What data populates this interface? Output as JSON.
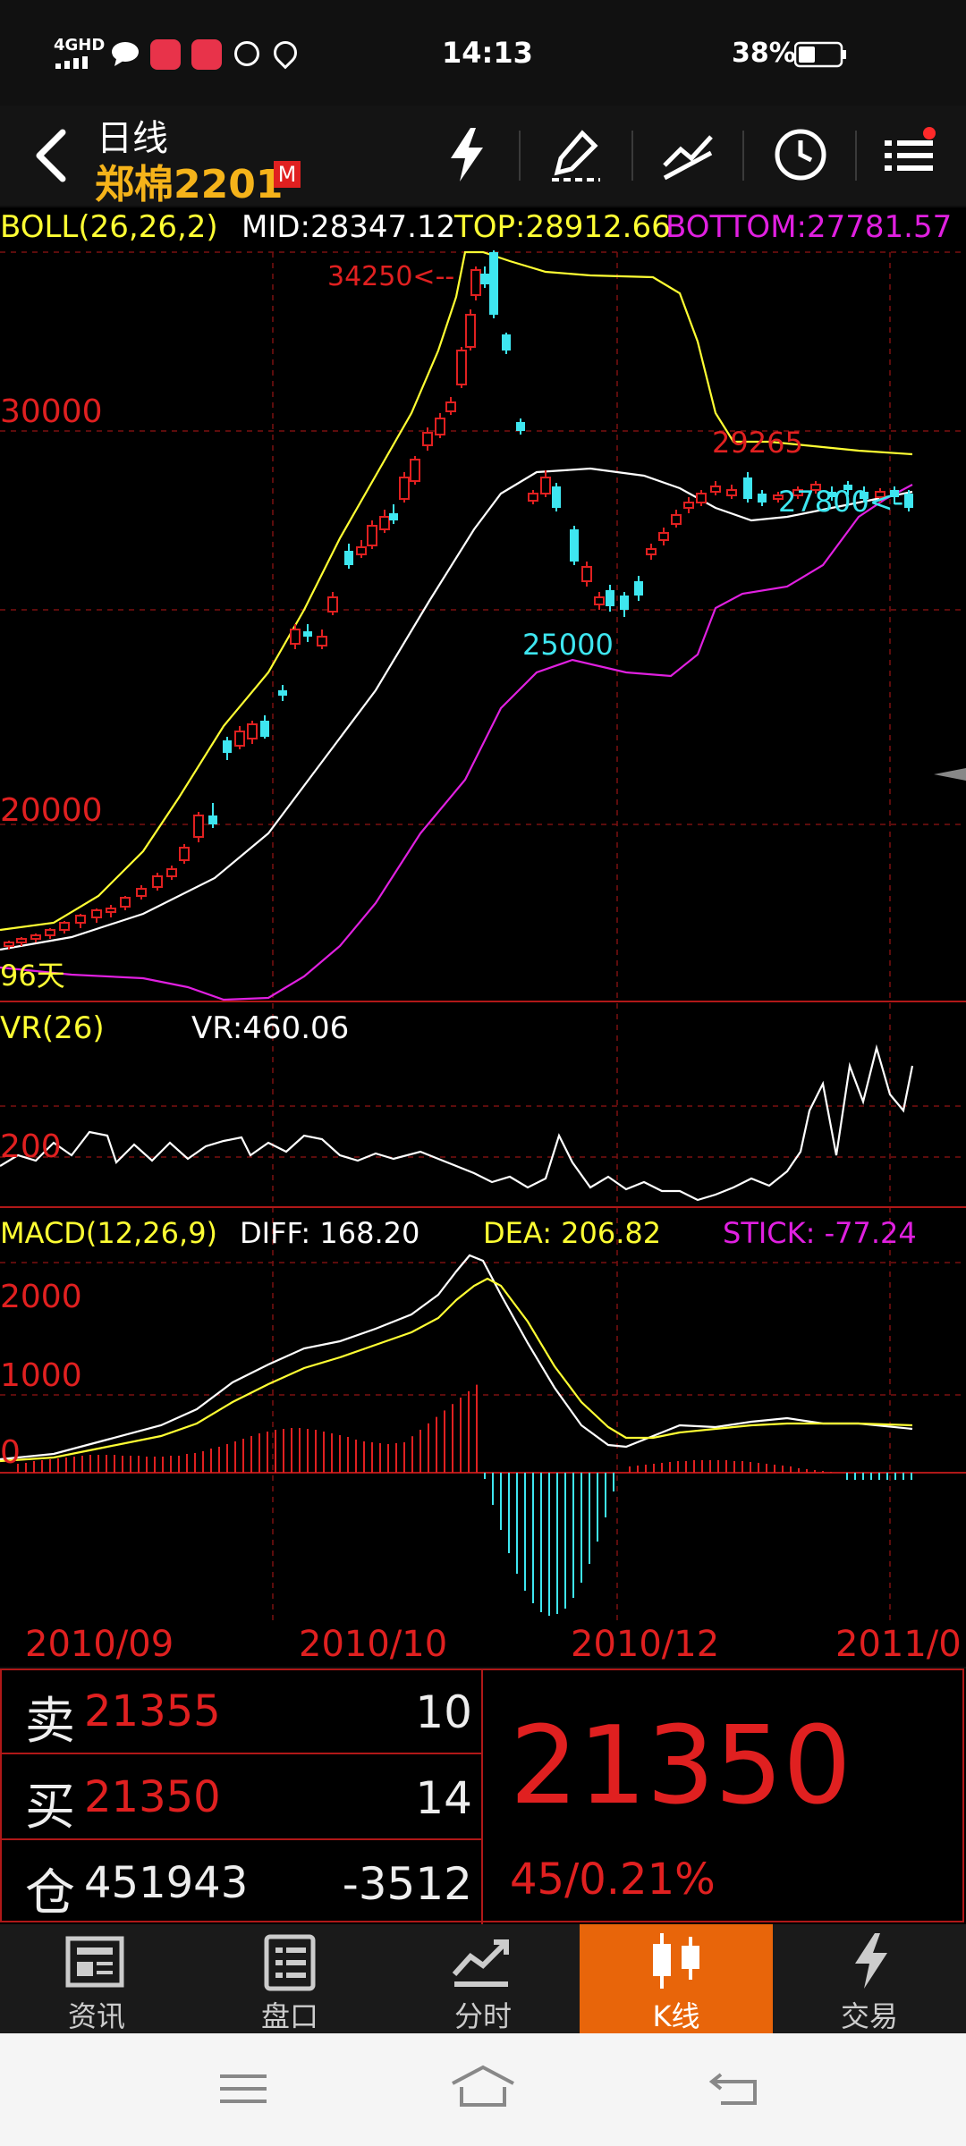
{
  "status_bar": {
    "time": "14:13",
    "battery": "38%",
    "network": "4GHD"
  },
  "header": {
    "title_top": "日线",
    "title": "郑棉2201",
    "badge": "M"
  },
  "boll": {
    "label": "BOLL(26,26,2)",
    "mid": "MID:28347.12",
    "top": "TOP:28912.66",
    "bottom": "BOTTOM:27781.57",
    "y_tick_30000": "30000",
    "y_tick_20000": "20000",
    "annot_high": "34250<--",
    "annot_low": "25000",
    "annot_29265": "29265",
    "annot_27800": "27800<--",
    "annot_left": "96天"
  },
  "vr": {
    "label": "VR(26)",
    "value": "VR:460.06",
    "y_tick": "200"
  },
  "macd": {
    "label": "MACD(12,26,9)",
    "diff": "DIFF: 168.20",
    "dea": "DEA: 206.82",
    "stick": "STICK: -77.24",
    "y_ticks": [
      "2000",
      "1000",
      "0"
    ]
  },
  "dates": [
    "2010/09",
    "2010/10",
    "2010/12",
    "2011/0"
  ],
  "quote": {
    "sell_label": "卖",
    "sell_price": "21355",
    "sell_vol": "10",
    "buy_label": "买",
    "buy_price": "21350",
    "buy_vol": "14",
    "oi_label": "仓",
    "oi_value": "451943",
    "oi_change": "-3512",
    "last_price": "21350",
    "change": "45/0.21%"
  },
  "tabs": [
    {
      "label": "资讯",
      "icon": "news-icon"
    },
    {
      "label": "盘口",
      "icon": "orderbook-icon"
    },
    {
      "label": "分时",
      "icon": "timeshare-icon"
    },
    {
      "label": "K线",
      "icon": "candlestick-icon",
      "active": true
    },
    {
      "label": "交易",
      "icon": "lightning-icon"
    }
  ],
  "colors": {
    "up": "#e02020",
    "down": "#3ee6f0",
    "mid": "#ffffff",
    "top": "#ffff33",
    "bottom": "#e020e0",
    "accent": "#e8650a"
  }
}
